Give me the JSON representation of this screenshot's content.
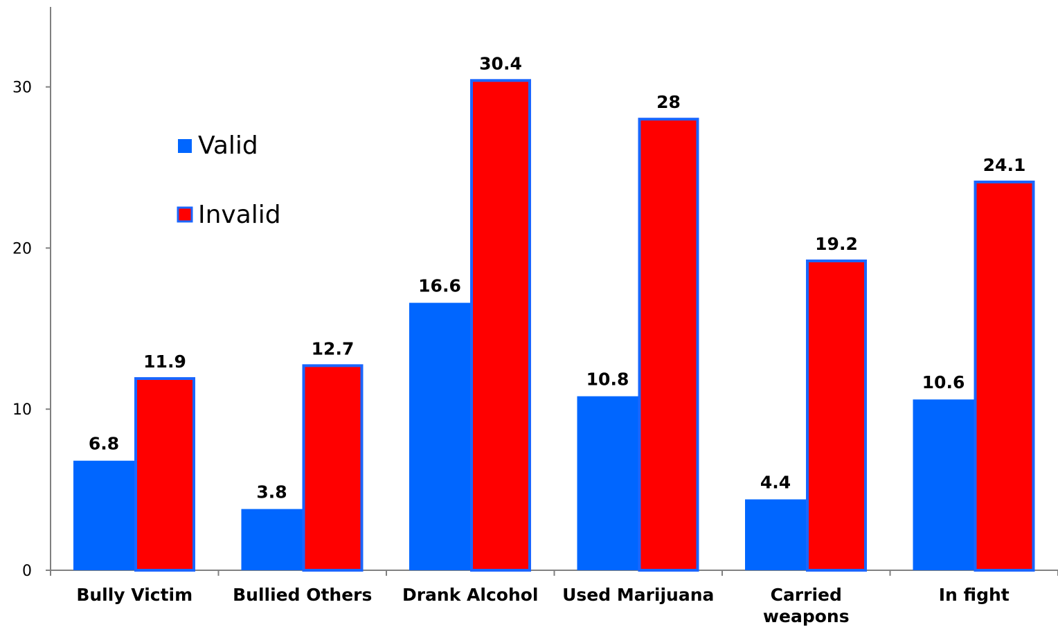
{
  "chart_data": {
    "type": "bar",
    "categories": [
      [
        "Bully Victim"
      ],
      [
        "Bullied Others"
      ],
      [
        "Drank Alcohol"
      ],
      [
        "Used Marijuana"
      ],
      [
        "Carried",
        "weapons"
      ],
      [
        "In fight"
      ]
    ],
    "series": [
      {
        "name": "Valid",
        "color": "#0066ff",
        "values": [
          6.8,
          3.8,
          16.6,
          10.8,
          4.4,
          10.6
        ]
      },
      {
        "name": "Invalid",
        "color": "#ff0000",
        "outline": "#1a66ff",
        "values": [
          11.9,
          12.7,
          30.4,
          28,
          19.2,
          24.1
        ]
      }
    ],
    "value_labels": {
      "Valid": [
        "6.8",
        "3.8",
        "16.6",
        "10.8",
        "4.4",
        "10.6"
      ],
      "Invalid": [
        "11.9",
        "12.7",
        "30.4",
        "28",
        "19.2",
        "24.1"
      ]
    },
    "yticks": [
      "0",
      "10",
      "20",
      "30"
    ],
    "ylim": [
      0,
      34.5
    ],
    "grid": false,
    "legend_position": "upper-left inside plot"
  }
}
